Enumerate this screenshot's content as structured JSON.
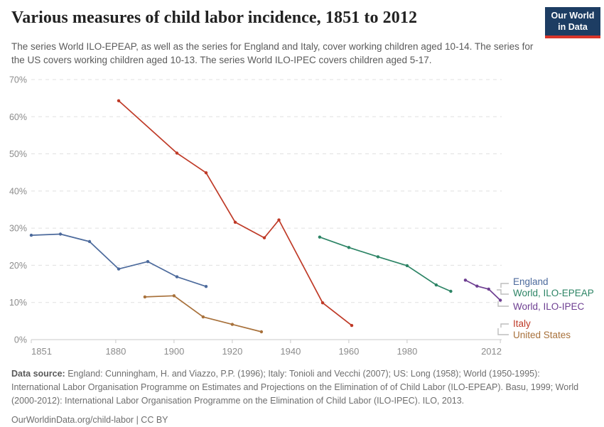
{
  "header": {
    "title": "Various measures of child labor incidence, 1851 to 2012",
    "subtitle": "The series World ILO-EPEAP, as well as the series for England and Italy, cover working children aged 10-14. The series for the US covers working children aged 10-13. The series World ILO-IPEC covers children aged 5-17.",
    "logo_line1": "Our World",
    "logo_line2": "in Data",
    "logo_bg_color": "#1d3d63",
    "logo_bar_color": "#d8352a"
  },
  "chart_data": {
    "type": "line",
    "title": "Various measures of child labor incidence, 1851 to 2012",
    "xlabel": "",
    "ylabel": "",
    "xlim": [
      1851,
      2012
    ],
    "ylim": [
      0,
      70
    ],
    "grid": "horizontal-dashed",
    "legend_position": "right",
    "x_ticks": [
      1851,
      1880,
      1900,
      1920,
      1940,
      1960,
      1980,
      2012
    ],
    "y_ticks": [
      0,
      10,
      20,
      30,
      40,
      50,
      60,
      70
    ],
    "y_tick_labels": [
      "0%",
      "10%",
      "20%",
      "30%",
      "40%",
      "50%",
      "60%",
      "70%"
    ],
    "unit": "%",
    "series": [
      {
        "name": "England",
        "color": "#4c6a9c",
        "points": [
          [
            1851,
            28.1
          ],
          [
            1861,
            28.4
          ],
          [
            1871,
            26.4
          ],
          [
            1881,
            19.0
          ],
          [
            1891,
            21.0
          ],
          [
            1901,
            16.9
          ],
          [
            1911,
            14.3
          ]
        ]
      },
      {
        "name": "World, ILO-EPEAP",
        "color": "#2c8465",
        "points": [
          [
            1950,
            27.6
          ],
          [
            1960,
            24.8
          ],
          [
            1970,
            22.3
          ],
          [
            1980,
            19.9
          ],
          [
            1990,
            14.7
          ],
          [
            1995,
            13.0
          ]
        ]
      },
      {
        "name": "World, ILO-IPEC",
        "color": "#6d3e91",
        "points": [
          [
            2000,
            16.0
          ],
          [
            2004,
            14.4
          ],
          [
            2008,
            13.6
          ],
          [
            2012,
            10.6
          ]
        ]
      },
      {
        "name": "Italy",
        "color": "#bf3a27",
        "points": [
          [
            1881,
            64.3
          ],
          [
            1901,
            50.2
          ],
          [
            1911,
            44.9
          ],
          [
            1921,
            31.6
          ],
          [
            1931,
            27.4
          ],
          [
            1936,
            32.2
          ],
          [
            1951,
            9.9
          ],
          [
            1961,
            3.8
          ]
        ]
      },
      {
        "name": "United States",
        "color": "#a8713b",
        "points": [
          [
            1890,
            11.5
          ],
          [
            1900,
            11.8
          ],
          [
            1910,
            6.1
          ],
          [
            1920,
            4.1
          ],
          [
            1930,
            2.1
          ]
        ]
      }
    ]
  },
  "footer": {
    "source_label": "Data source:",
    "source_text": "England: Cunningham, H. and Viazzo, P.P. (1996); Italy: Tonioli and Vecchi (2007); US: Long (1958); World (1950-1995): International Labor Organisation Programme on Estimates and Projections on the Elimination of of Child Labor (ILO-EPEAP). Basu, 1999; World (2000-2012): International Labor Organisation Programme on the Elimination of Child Labor (ILO-IPEC). ILO, 2013.",
    "link": "OurWorldinData.org/child-labor",
    "separator": "|",
    "license": "CC BY"
  }
}
